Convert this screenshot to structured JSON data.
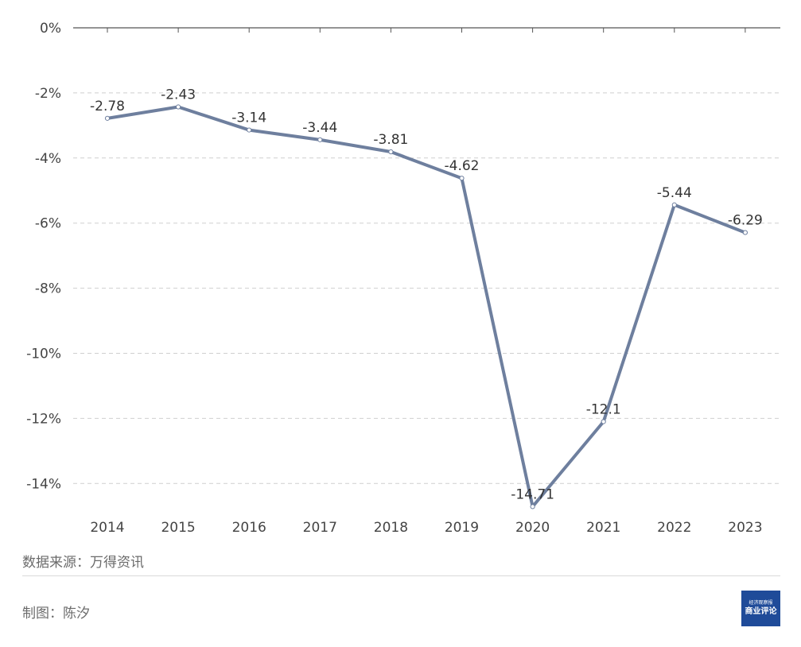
{
  "chart_data": {
    "type": "line",
    "categories": [
      "2014",
      "2015",
      "2016",
      "2017",
      "2018",
      "2019",
      "2020",
      "2021",
      "2022",
      "2023"
    ],
    "values": [
      -2.78,
      -2.43,
      -3.14,
      -3.44,
      -3.81,
      -4.62,
      -14.71,
      -12.1,
      -5.44,
      -6.29
    ],
    "data_labels": [
      "-2.78",
      "-2.43",
      "-3.14",
      "-3.44",
      "-3.81",
      "-4.62",
      "-14.71",
      "-12.1",
      "-5.44",
      "-6.29"
    ],
    "yticks": [
      0,
      -2,
      -4,
      -6,
      -8,
      -10,
      -12,
      -14
    ],
    "ytick_labels": [
      "0%",
      "-2%",
      "-4%",
      "-6%",
      "-8%",
      "-10%",
      "-12%",
      "-14%"
    ],
    "ylim": [
      -14.71,
      0
    ],
    "grid": "horizontal-dashed",
    "line_color": "#6e7f9e",
    "title": "",
    "xlabel": "",
    "ylabel": ""
  },
  "footer": {
    "source": "数据来源：万得资讯",
    "author": "制图：陈汐",
    "logo_top": "经济观察报",
    "logo_main": "商业评论",
    "logo_color": "#1f4b99"
  }
}
